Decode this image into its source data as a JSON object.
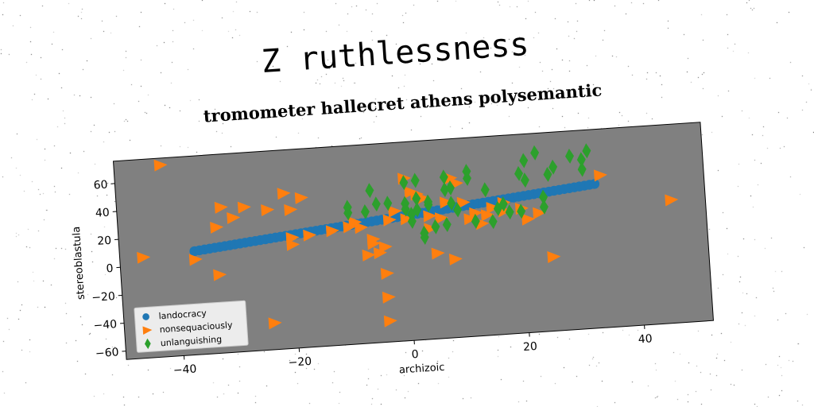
{
  "chart_data": {
    "type": "scatter",
    "title": "Z ruthlessness",
    "subtitle": "tromometer hallecret athens polysemantic",
    "xlabel": "archizoic",
    "ylabel": "stereoblastula",
    "xlim": [
      -50,
      52
    ],
    "ylim": [
      -66,
      76
    ],
    "xticks": [
      -40,
      -20,
      0,
      20,
      40
    ],
    "yticks": [
      -60,
      -40,
      -20,
      0,
      20,
      40,
      60
    ],
    "xtick_labels": [
      "−40",
      "−20",
      "0",
      "20",
      "40"
    ],
    "ytick_labels": [
      "−60",
      "−40",
      "−20",
      "0",
      "20",
      "40",
      "60"
    ],
    "grid": false,
    "plot_background": "#808080",
    "legend_position": "lower-left",
    "series": [
      {
        "name": "landocracy",
        "marker": "circle",
        "color": "#1f77b4",
        "line": {
          "x_start": -37,
          "x_end": 33,
          "y_start": 8,
          "y_end": 37,
          "count": 80
        }
      },
      {
        "name": "nonsequaciously",
        "marker": "triangle-right",
        "color": "#ff7f0e",
        "points": [
          [
            -42,
            71
          ],
          [
            -46,
            6
          ],
          [
            -37,
            2
          ],
          [
            -33,
            24
          ],
          [
            -32,
            38
          ],
          [
            -30,
            30
          ],
          [
            -28,
            37
          ],
          [
            -33,
            -10
          ],
          [
            -24,
            34
          ],
          [
            -21,
            45
          ],
          [
            -18,
            41
          ],
          [
            -20,
            33
          ],
          [
            -24,
            -47
          ],
          [
            -20,
            8
          ],
          [
            -20,
            13
          ],
          [
            -17,
            14
          ],
          [
            -13,
            16
          ],
          [
            -10,
            18
          ],
          [
            -9,
            21
          ],
          [
            -8,
            17
          ],
          [
            -7,
            -3
          ],
          [
            -6,
            5
          ],
          [
            -6,
            8
          ],
          [
            -5,
            -2
          ],
          [
            -4,
            2
          ],
          [
            -3,
            21
          ],
          [
            -2,
            27
          ],
          [
            0,
            21
          ],
          [
            -4,
            -34
          ],
          [
            -4,
            -51
          ],
          [
            -4,
            -17
          ],
          [
            0,
            50
          ],
          [
            1,
            40
          ],
          [
            2,
            38
          ],
          [
            3,
            35
          ],
          [
            4,
            22
          ],
          [
            4,
            13
          ],
          [
            5,
            -5
          ],
          [
            6,
            20
          ],
          [
            8,
            -10
          ],
          [
            7,
            31
          ],
          [
            8,
            48
          ],
          [
            9,
            44
          ],
          [
            10,
            30
          ],
          [
            11,
            18
          ],
          [
            12,
            22
          ],
          [
            13,
            14
          ],
          [
            14,
            20
          ],
          [
            15,
            25
          ],
          [
            17,
            28
          ],
          [
            17,
            22
          ],
          [
            20,
            23
          ],
          [
            21,
            15
          ],
          [
            23,
            19
          ],
          [
            25,
            -13
          ],
          [
            34,
            43
          ],
          [
            46,
            22
          ]
        ]
      },
      {
        "name": "unlanguishing",
        "marker": "diamond",
        "color": "#2ca02c",
        "points": [
          [
            -10,
            32
          ],
          [
            -10,
            28
          ],
          [
            -7,
            28
          ],
          [
            -6,
            43
          ],
          [
            -5,
            33
          ],
          [
            -3,
            33
          ],
          [
            0,
            47
          ],
          [
            0,
            32
          ],
          [
            0,
            28
          ],
          [
            1,
            24
          ],
          [
            1,
            19
          ],
          [
            2,
            35
          ],
          [
            2,
            48
          ],
          [
            2,
            27
          ],
          [
            3,
            10
          ],
          [
            3,
            7
          ],
          [
            4,
            30
          ],
          [
            4,
            32
          ],
          [
            5,
            14
          ],
          [
            7,
            15
          ],
          [
            7,
            49
          ],
          [
            7,
            40
          ],
          [
            8,
            41
          ],
          [
            8,
            30
          ],
          [
            9,
            25
          ],
          [
            11,
            52
          ],
          [
            11,
            47
          ],
          [
            12,
            16
          ],
          [
            14,
            38
          ],
          [
            15,
            15
          ],
          [
            16,
            24
          ],
          [
            17,
            27
          ],
          [
            18,
            21
          ],
          [
            20,
            21
          ],
          [
            20,
            48
          ],
          [
            21,
            57
          ],
          [
            21,
            43
          ],
          [
            23,
            62
          ],
          [
            24,
            30
          ],
          [
            24,
            23
          ],
          [
            25,
            46
          ],
          [
            26,
            51
          ],
          [
            29,
            58
          ],
          [
            31,
            55
          ],
          [
            31,
            48
          ],
          [
            32,
            61
          ]
        ]
      }
    ]
  }
}
